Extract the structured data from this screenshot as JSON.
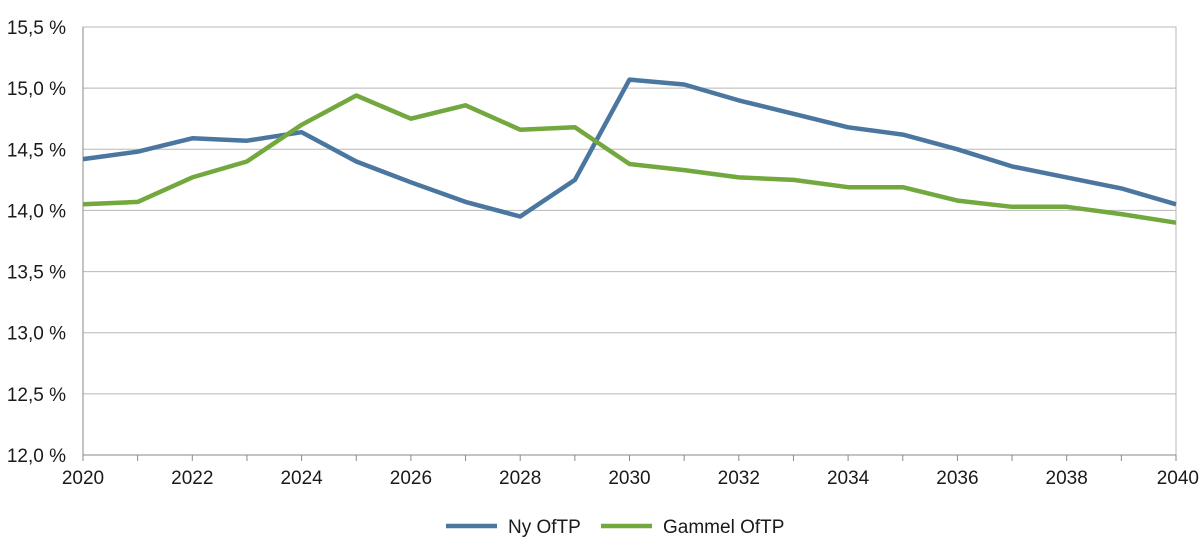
{
  "chart_data": {
    "type": "line",
    "title": "",
    "xlabel": "",
    "ylabel": "",
    "x": [
      2020,
      2021,
      2022,
      2023,
      2024,
      2025,
      2026,
      2027,
      2028,
      2029,
      2030,
      2031,
      2032,
      2033,
      2034,
      2035,
      2036,
      2037,
      2038,
      2039,
      2040
    ],
    "xlim": [
      2020,
      2040
    ],
    "x_tick_values": [
      2020,
      2022,
      2024,
      2026,
      2028,
      2030,
      2032,
      2034,
      2036,
      2038,
      2040
    ],
    "x_tick_labels": [
      "2020",
      "2022",
      "2024",
      "2026",
      "2028",
      "2030",
      "2032",
      "2034",
      "2036",
      "2038",
      "2040"
    ],
    "ylim": [
      12.0,
      15.5
    ],
    "y_tick_values": [
      12.0,
      12.5,
      13.0,
      13.5,
      14.0,
      14.5,
      15.0,
      15.5
    ],
    "y_tick_labels": [
      "12,0 %",
      "12,5 %",
      "13,0 %",
      "13,5 %",
      "14,0 %",
      "14,5 %",
      "15,0 %",
      "15,5 %"
    ],
    "grid": true,
    "legend_position": "bottom",
    "series": [
      {
        "name": "Ny OfTP",
        "color": "#4a76a0",
        "values": [
          14.42,
          14.48,
          14.59,
          14.57,
          14.64,
          14.4,
          14.23,
          14.07,
          13.95,
          14.25,
          15.07,
          15.03,
          14.9,
          14.79,
          14.68,
          14.62,
          14.5,
          14.36,
          14.27,
          14.18,
          14.05
        ]
      },
      {
        "name": "Gammel OfTP",
        "color": "#72a83e",
        "values": [
          14.05,
          14.07,
          14.27,
          14.4,
          14.7,
          14.94,
          14.75,
          14.86,
          14.66,
          14.68,
          14.38,
          14.33,
          14.27,
          14.25,
          14.19,
          14.19,
          14.08,
          14.03,
          14.03,
          13.97,
          13.9
        ]
      }
    ]
  }
}
